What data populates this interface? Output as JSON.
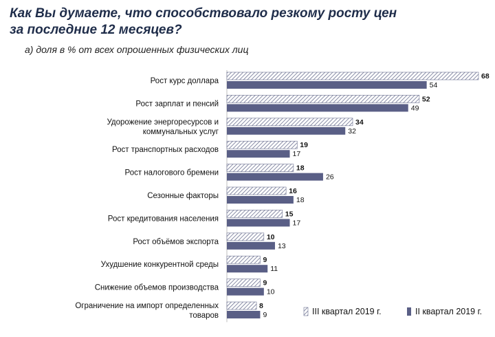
{
  "title_line1": "Как Вы думаете, что способствовало резкому росту цен",
  "title_line2": "за последние 12 месяцев?",
  "subtitle": "а) доля в % от всех опрошенных физических лиц",
  "colors": {
    "q3_pattern": "#6b7090",
    "q2_fill": "#5a5f86",
    "axis": "#bdbdbd"
  },
  "chart_data": {
    "type": "bar",
    "orientation": "horizontal",
    "categories": [
      [
        "Рост курс доллара"
      ],
      [
        "Рост зарплат и пенсий"
      ],
      [
        "Удорожение энергоресурсов и",
        "коммунальных услуг"
      ],
      [
        "Рост транспортных расходов"
      ],
      [
        "Рост налогового бремени"
      ],
      [
        "Сезонные факторы"
      ],
      [
        "Рост кредитования населения"
      ],
      [
        "Рост объёмов экспорта"
      ],
      [
        "Ухудшение конкурентной среды"
      ],
      [
        "Снижение объемов производства"
      ],
      [
        "Ограничение на импорт определенных",
        "товаров"
      ]
    ],
    "series": [
      {
        "name": "III квартал 2019 г.",
        "pattern": "hatched",
        "values": [
          68,
          52,
          34,
          19,
          18,
          16,
          15,
          10,
          9,
          9,
          8
        ]
      },
      {
        "name": "II квартал 2019 г.",
        "pattern": "solid",
        "values": [
          54,
          49,
          32,
          17,
          26,
          18,
          17,
          13,
          11,
          10,
          9
        ]
      }
    ],
    "xlim": [
      0,
      68
    ],
    "legend_position": "bottom-right"
  }
}
